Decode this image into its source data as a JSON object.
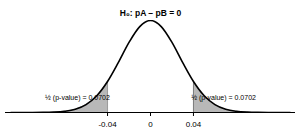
{
  "chart_data": {
    "type": "line",
    "title": "H₀: pA – pB = 0",
    "x": [
      -0.13,
      -0.12,
      -0.11,
      -0.1,
      -0.09,
      -0.08,
      -0.07,
      -0.06,
      -0.05,
      -0.04,
      -0.03,
      -0.02,
      -0.01,
      0,
      0.01,
      0.02,
      0.03,
      0.04,
      0.05,
      0.06,
      0.07,
      0.08,
      0.09,
      0.1,
      0.11,
      0.12,
      0.13
    ],
    "values": [
      0.0,
      0.0001,
      0.0003,
      0.001,
      0.004,
      0.013,
      0.035,
      0.086,
      0.182,
      0.337,
      0.542,
      0.762,
      0.934,
      1.0,
      0.934,
      0.762,
      0.542,
      0.337,
      0.182,
      0.086,
      0.035,
      0.013,
      0.004,
      0.001,
      0.0003,
      0.0001,
      0.0
    ],
    "color": "#000000",
    "shaded_tails": [
      -0.04,
      0.04
    ],
    "xlim": [
      -0.135,
      0.135
    ],
    "xticks": [
      -0.04,
      0,
      0.04
    ],
    "ylim": [
      0,
      1.0
    ],
    "tick_labels": "x",
    "annotations": [
      {
        "text": "½ (p-value) = 0.0702",
        "x": -0.068,
        "y": 0.16
      },
      {
        "text": "½ (p-value) = 0.0702",
        "x": 0.068,
        "y": 0.16
      }
    ]
  }
}
